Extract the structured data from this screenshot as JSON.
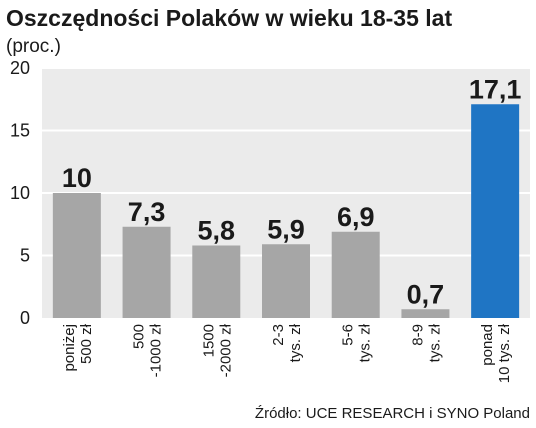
{
  "chart_data": {
    "type": "bar",
    "title": "Oszczędności  Polaków w wieku 18-35 lat",
    "subtitle": "(proc.)",
    "categories": [
      [
        "poniżej",
        "500 zł"
      ],
      [
        "500",
        "-1000 zł"
      ],
      [
        "1500",
        "-2000 zł"
      ],
      [
        "2-3",
        "tys. zł"
      ],
      [
        "5-6",
        "tys. zł"
      ],
      [
        "8-9",
        "tys. zł"
      ],
      [
        "ponad",
        "10 tys. zł"
      ]
    ],
    "values": [
      10,
      7.3,
      5.8,
      5.9,
      6.9,
      0.7,
      17.1
    ],
    "value_labels": [
      "10",
      "7,3",
      "5,8",
      "5,9",
      "6,9",
      "0,7",
      "17,1"
    ],
    "ylim": [
      0,
      20
    ],
    "yticks": [
      0,
      5,
      10,
      15,
      20
    ],
    "grid": true,
    "colors": {
      "bar": "#a6a6a6",
      "highlight_bar": "#1f75c4",
      "plot_bg": "#ebebeb",
      "grid": "#ffffff"
    },
    "highlight_index": 6,
    "source": "Źródło: UCE RESEARCH i SYNO Poland"
  }
}
